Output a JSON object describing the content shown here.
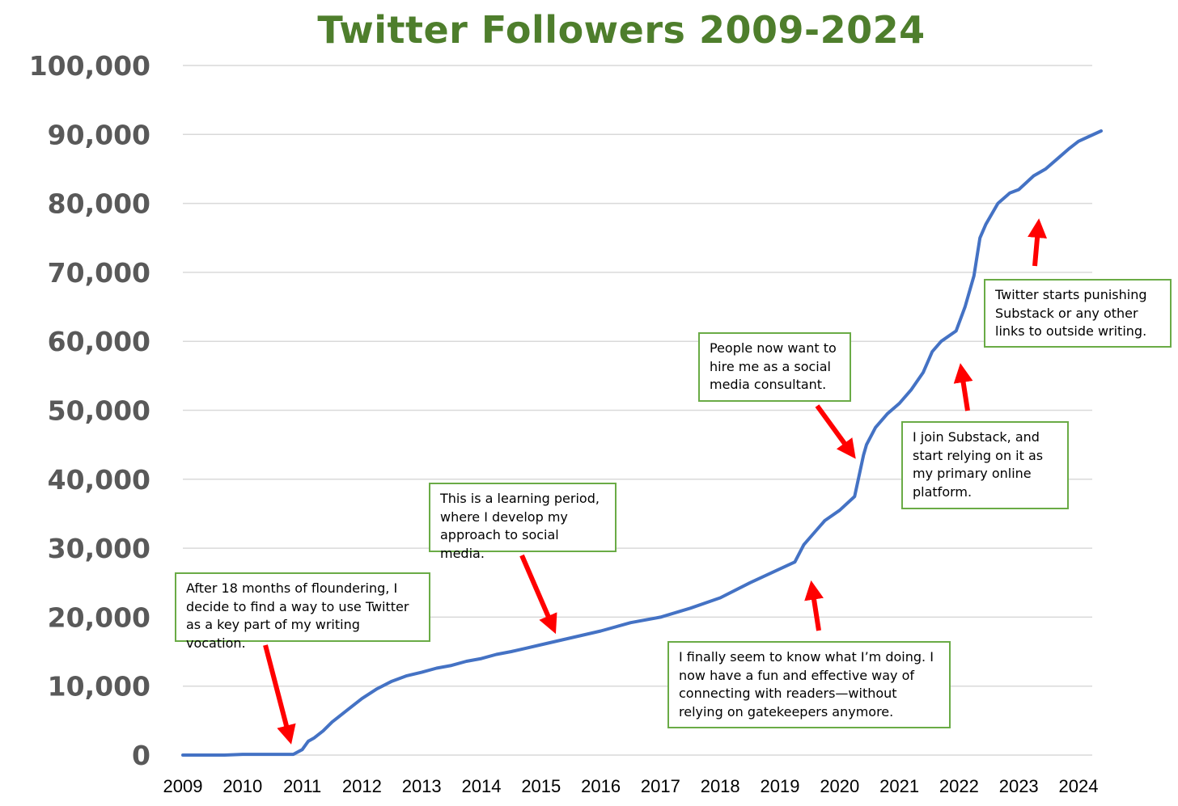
{
  "chart_data": {
    "type": "line",
    "title": "Twitter Followers 2009-2024",
    "xlabel": "",
    "ylabel": "",
    "xlim": [
      2009,
      2024.45
    ],
    "ylim": [
      0,
      100000
    ],
    "x_ticks": [
      "2009",
      "2010",
      "2011",
      "2012",
      "2013",
      "2014",
      "2015",
      "2016",
      "2017",
      "2018",
      "2019",
      "2020",
      "2021",
      "2022",
      "2023",
      "2024"
    ],
    "y_ticks": [
      "0",
      "10,000",
      "20,000",
      "30,000",
      "40,000",
      "50,000",
      "60,000",
      "70,000",
      "80,000",
      "90,000",
      "100,000"
    ],
    "grid": true,
    "legend": "none",
    "line_color": "#4472c4",
    "series": [
      {
        "x": [
          2009.0,
          2009.7,
          2010.0,
          2010.6,
          2010.85,
          2011.0,
          2011.1,
          2011.2,
          2011.35,
          2011.5,
          2011.75,
          2012.0,
          2012.25,
          2012.5,
          2012.75,
          2013.0,
          2013.25,
          2013.5,
          2013.75,
          2014.0,
          2014.25,
          2014.5,
          2014.75,
          2015.0,
          2015.5,
          2016.0,
          2016.5,
          2017.0,
          2017.5,
          2018.0,
          2018.5,
          2019.0,
          2019.25,
          2019.4,
          2019.55,
          2019.75,
          2020.0,
          2020.25,
          2020.4,
          2020.45,
          2020.6,
          2020.8,
          2021.0,
          2021.2,
          2021.4,
          2021.55,
          2021.7,
          2021.95,
          2022.1,
          2022.25,
          2022.35,
          2022.45,
          2022.65,
          2022.85,
          2023.0,
          2023.25,
          2023.45,
          2023.65,
          2023.85,
          2024.0,
          2024.2,
          2024.38
        ],
        "y": [
          0,
          0,
          100,
          100,
          100,
          800,
          2000,
          2500,
          3500,
          4800,
          6500,
          8200,
          9600,
          10700,
          11500,
          12000,
          12600,
          13000,
          13600,
          14000,
          14600,
          15000,
          15500,
          16000,
          17000,
          18000,
          19200,
          20000,
          21300,
          22800,
          25000,
          27000,
          28000,
          30500,
          32000,
          34000,
          35500,
          37500,
          43500,
          45000,
          47500,
          49500,
          51000,
          53000,
          55500,
          58500,
          60000,
          61500,
          65000,
          69500,
          75000,
          77000,
          80000,
          81500,
          82000,
          84000,
          85000,
          86500,
          88000,
          89000,
          89800,
          90500
        ]
      }
    ],
    "annotations": [
      {
        "lines": [
          "After 18 months of floundering, I",
          "decide to find a way to use Twitter",
          "as a key part of my writing vocation."
        ],
        "arrow_to": [
          2010.85,
          400
        ]
      },
      {
        "lines": [
          "This is a learning period,",
          "where I develop my",
          "approach to social media."
        ],
        "arrow_to": [
          2015.3,
          16500
        ]
      },
      {
        "lines": [
          "I finally seem to know what I’m doing. I",
          "now have a fun and effective way of",
          "connecting with readers—without",
          "relying on gatekeepers anymore."
        ],
        "arrow_to": [
          2019.5,
          26500
        ]
      },
      {
        "lines": [
          "People now want to",
          "hire me as a social",
          "media consultant."
        ],
        "arrow_to": [
          2020.35,
          42000
        ]
      },
      {
        "lines": [
          "I join Substack, and",
          "start relying on it as",
          "my primary online",
          "platform."
        ],
        "arrow_to": [
          2022.0,
          58000
        ]
      },
      {
        "lines": [
          "Twitter starts punishing",
          "Substack or any other",
          "links to outside writing."
        ],
        "arrow_to": [
          2023.35,
          79000
        ]
      }
    ],
    "colors": {
      "title": "#4e7e2c",
      "line": "#4472c4",
      "annotation_border": "#6aab46",
      "arrow": "#ff0000",
      "grid": "#d9d9d9",
      "y_tick_text": "#595959"
    }
  }
}
